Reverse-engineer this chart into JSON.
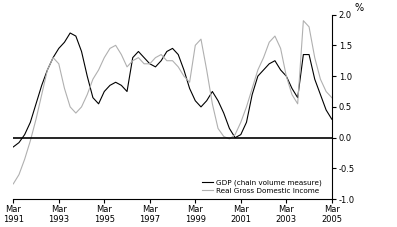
{
  "title": "",
  "ylabel": "%",
  "ylim": [
    -1.0,
    2.0
  ],
  "yticks": [
    -1.0,
    -0.5,
    0.0,
    0.5,
    1.0,
    1.5,
    2.0
  ],
  "x_labels": [
    "Mar\n1991",
    "Mar\n1993",
    "Mar\n1995",
    "Mar\n1997",
    "Mar\n1999",
    "Mar\n2001",
    "Mar\n2003",
    "Mar\n2005"
  ],
  "x_tick_positions": [
    0,
    8,
    16,
    24,
    32,
    40,
    48,
    56
  ],
  "gdp_color": "#000000",
  "rgdi_color": "#b0b0b0",
  "background_color": "#ffffff",
  "legend_labels": [
    "GDP (chain volume measure)",
    "Real Gross Domestic Income"
  ],
  "gdp_values": [
    -0.15,
    -0.08,
    0.05,
    0.25,
    0.55,
    0.85,
    1.1,
    1.3,
    1.45,
    1.55,
    1.7,
    1.65,
    1.4,
    1.0,
    0.65,
    0.55,
    0.75,
    0.85,
    0.9,
    0.85,
    0.75,
    1.3,
    1.4,
    1.3,
    1.2,
    1.15,
    1.25,
    1.4,
    1.45,
    1.35,
    1.1,
    0.8,
    0.6,
    0.5,
    0.6,
    0.75,
    0.6,
    0.4,
    0.15,
    0.0,
    0.05,
    0.25,
    0.7,
    1.0,
    1.1,
    1.2,
    1.25,
    1.1,
    1.0,
    0.8,
    0.65,
    1.35,
    1.35,
    0.95,
    0.7,
    0.45,
    0.3
  ],
  "rgdi_values": [
    -0.75,
    -0.6,
    -0.35,
    -0.05,
    0.3,
    0.7,
    1.1,
    1.3,
    1.2,
    0.8,
    0.5,
    0.4,
    0.5,
    0.7,
    0.95,
    1.1,
    1.3,
    1.45,
    1.5,
    1.35,
    1.15,
    1.25,
    1.3,
    1.2,
    1.2,
    1.3,
    1.35,
    1.25,
    1.25,
    1.15,
    1.0,
    0.9,
    1.5,
    1.6,
    1.1,
    0.55,
    0.15,
    0.02,
    -0.02,
    0.05,
    0.25,
    0.5,
    0.8,
    1.1,
    1.3,
    1.55,
    1.65,
    1.45,
    1.0,
    0.7,
    0.55,
    1.9,
    1.8,
    1.3,
    0.95,
    0.75,
    0.65
  ]
}
